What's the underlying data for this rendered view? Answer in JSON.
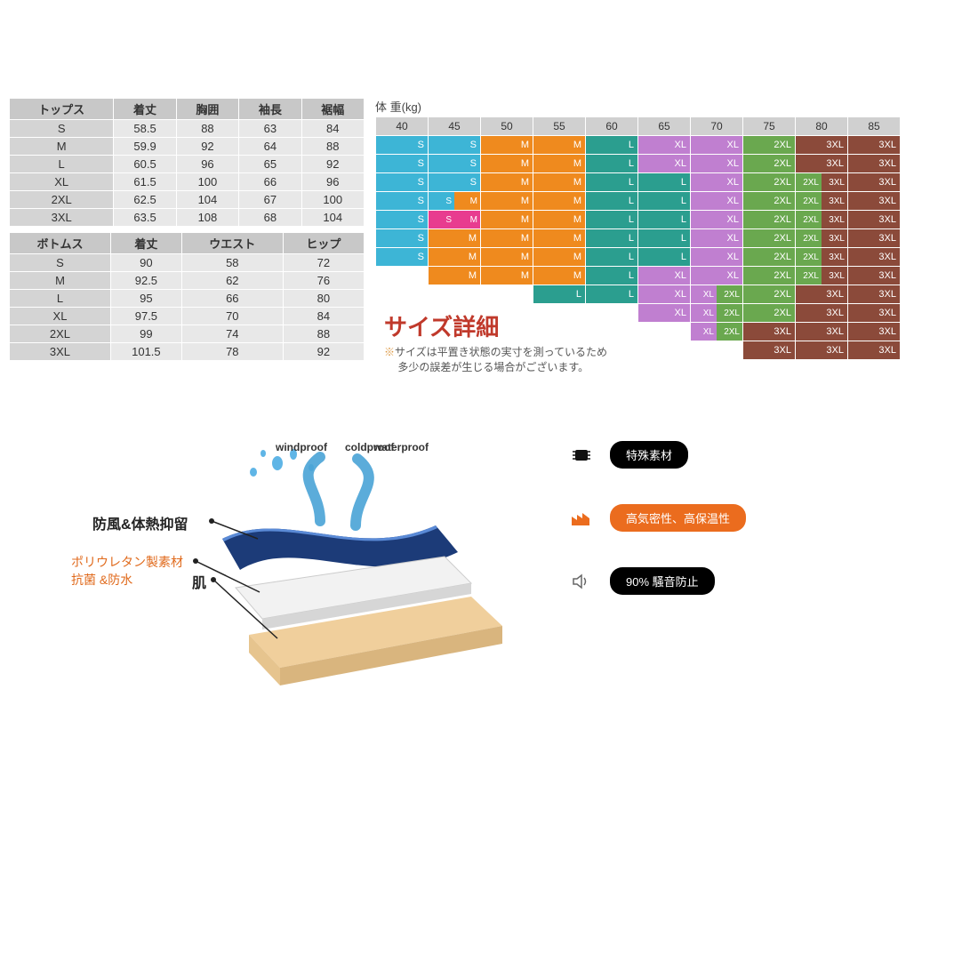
{
  "topsTable": {
    "headers": [
      "トップス",
      "着丈",
      "胸囲",
      "袖長",
      "裾幅"
    ],
    "rows": [
      [
        "S",
        "58.5",
        "88",
        "63",
        "84"
      ],
      [
        "M",
        "59.9",
        "92",
        "64",
        "88"
      ],
      [
        "L",
        "60.5",
        "96",
        "65",
        "92"
      ],
      [
        "XL",
        "61.5",
        "100",
        "66",
        "96"
      ],
      [
        "2XL",
        "62.5",
        "104",
        "67",
        "100"
      ],
      [
        "3XL",
        "63.5",
        "108",
        "68",
        "104"
      ]
    ]
  },
  "bottomsTable": {
    "headers": [
      "ボトムス",
      "着丈",
      "ウエスト",
      "ヒップ"
    ],
    "rows": [
      [
        "S",
        "90",
        "58",
        "72"
      ],
      [
        "M",
        "92.5",
        "62",
        "76"
      ],
      [
        "L",
        "95",
        "66",
        "80"
      ],
      [
        "XL",
        "97.5",
        "70",
        "84"
      ],
      [
        "2XL",
        "99",
        "74",
        "88"
      ],
      [
        "3XL",
        "101.5",
        "78",
        "92"
      ]
    ]
  },
  "weightLabel": "体 重(kg)",
  "weightCols": [
    "40",
    "45",
    "50",
    "55",
    "60",
    "65",
    "70",
    "75",
    "80",
    "85"
  ],
  "sizeColors": {
    "S": "#3db5d6",
    "M": "#ef8a1e",
    "L": "#2b9e8f",
    "XL": "#c07fd0",
    "2XL": "#6aa84f",
    "3XL": "#8b4a3a",
    "pink": "#e83c8f"
  },
  "sizeGrid": [
    [
      {
        "t": "S",
        "c": "s"
      },
      {
        "t": "S",
        "c": "s"
      },
      {
        "t": "M",
        "c": "m"
      },
      {
        "t": "M",
        "c": "m"
      },
      {
        "t": "L",
        "c": "l"
      },
      {
        "t": "XL",
        "c": "xl"
      },
      {
        "t": "XL",
        "c": "xl"
      },
      {
        "t": "2XL",
        "c": "2xl"
      },
      {
        "t": "3XL",
        "c": "3xl"
      },
      {
        "t": "3XL",
        "c": "3xl"
      }
    ],
    [
      {
        "t": "S",
        "c": "s"
      },
      {
        "t": "S",
        "c": "s"
      },
      {
        "t": "M",
        "c": "m"
      },
      {
        "t": "M",
        "c": "m"
      },
      {
        "t": "L",
        "c": "l"
      },
      {
        "t": "XL",
        "c": "xl"
      },
      {
        "t": "XL",
        "c": "xl"
      },
      {
        "t": "2XL",
        "c": "2xl"
      },
      {
        "t": "3XL",
        "c": "3xl"
      },
      {
        "t": "3XL",
        "c": "3xl"
      }
    ],
    [
      {
        "t": "S",
        "c": "s"
      },
      {
        "t": "S",
        "c": "s"
      },
      {
        "t": "M",
        "c": "m"
      },
      {
        "t": "M",
        "c": "m"
      },
      {
        "t": "L",
        "c": "l"
      },
      {
        "t": "L",
        "c": "l"
      },
      {
        "t": "XL",
        "c": "xl"
      },
      {
        "t": "2XL",
        "c": "2xl"
      },
      {
        "split": [
          {
            "t": "2XL",
            "c": "2xl"
          },
          {
            "t": "3XL",
            "c": "3xl"
          }
        ]
      },
      {
        "t": "3XL",
        "c": "3xl"
      }
    ],
    [
      {
        "t": "S",
        "c": "s"
      },
      {
        "split": [
          {
            "t": "S",
            "c": "s"
          },
          {
            "t": "M",
            "c": "m"
          }
        ]
      },
      {
        "t": "M",
        "c": "m"
      },
      {
        "t": "M",
        "c": "m"
      },
      {
        "t": "L",
        "c": "l"
      },
      {
        "t": "L",
        "c": "l"
      },
      {
        "t": "XL",
        "c": "xl"
      },
      {
        "t": "2XL",
        "c": "2xl"
      },
      {
        "split": [
          {
            "t": "2XL",
            "c": "2xl"
          },
          {
            "t": "3XL",
            "c": "3xl"
          }
        ]
      },
      {
        "t": "3XL",
        "c": "3xl"
      }
    ],
    [
      {
        "t": "S",
        "c": "s"
      },
      {
        "split": [
          {
            "t": "S",
            "c": "pink"
          },
          {
            "t": "M",
            "c": "pink"
          }
        ]
      },
      {
        "t": "M",
        "c": "m"
      },
      {
        "t": "M",
        "c": "m"
      },
      {
        "t": "L",
        "c": "l"
      },
      {
        "t": "L",
        "c": "l"
      },
      {
        "t": "XL",
        "c": "xl"
      },
      {
        "t": "2XL",
        "c": "2xl"
      },
      {
        "split": [
          {
            "t": "2XL",
            "c": "2xl"
          },
          {
            "t": "3XL",
            "c": "3xl"
          }
        ]
      },
      {
        "t": "3XL",
        "c": "3xl"
      }
    ],
    [
      {
        "t": "S",
        "c": "s"
      },
      {
        "t": "M",
        "c": "m"
      },
      {
        "t": "M",
        "c": "m"
      },
      {
        "t": "M",
        "c": "m"
      },
      {
        "t": "L",
        "c": "l"
      },
      {
        "t": "L",
        "c": "l"
      },
      {
        "t": "XL",
        "c": "xl"
      },
      {
        "t": "2XL",
        "c": "2xl"
      },
      {
        "split": [
          {
            "t": "2XL",
            "c": "2xl"
          },
          {
            "t": "3XL",
            "c": "3xl"
          }
        ]
      },
      {
        "t": "3XL",
        "c": "3xl"
      }
    ],
    [
      {
        "t": "S",
        "c": "s"
      },
      {
        "t": "M",
        "c": "m"
      },
      {
        "t": "M",
        "c": "m"
      },
      {
        "t": "M",
        "c": "m"
      },
      {
        "t": "L",
        "c": "l"
      },
      {
        "t": "L",
        "c": "l"
      },
      {
        "t": "XL",
        "c": "xl"
      },
      {
        "t": "2XL",
        "c": "2xl"
      },
      {
        "split": [
          {
            "t": "2XL",
            "c": "2xl"
          },
          {
            "t": "3XL",
            "c": "3xl"
          }
        ]
      },
      {
        "t": "3XL",
        "c": "3xl"
      }
    ],
    [
      {
        "t": "",
        "c": "none"
      },
      {
        "t": "M",
        "c": "m"
      },
      {
        "t": "M",
        "c": "m"
      },
      {
        "t": "M",
        "c": "m"
      },
      {
        "t": "L",
        "c": "l"
      },
      {
        "t": "XL",
        "c": "xl"
      },
      {
        "t": "XL",
        "c": "xl"
      },
      {
        "t": "2XL",
        "c": "2xl"
      },
      {
        "split": [
          {
            "t": "2XL",
            "c": "2xl"
          },
          {
            "t": "3XL",
            "c": "3xl"
          }
        ]
      },
      {
        "t": "3XL",
        "c": "3xl"
      }
    ],
    [
      {
        "t": "",
        "c": "none"
      },
      {
        "t": "",
        "c": "none"
      },
      {
        "t": "",
        "c": "none"
      },
      {
        "t": "L",
        "c": "l"
      },
      {
        "t": "L",
        "c": "l"
      },
      {
        "t": "XL",
        "c": "xl"
      },
      {
        "split": [
          {
            "t": "XL",
            "c": "xl"
          },
          {
            "t": "2XL",
            "c": "2xl"
          }
        ]
      },
      {
        "t": "2XL",
        "c": "2xl"
      },
      {
        "t": "3XL",
        "c": "3xl"
      },
      {
        "t": "3XL",
        "c": "3xl"
      }
    ],
    [
      {
        "t": "",
        "c": "none"
      },
      {
        "t": "",
        "c": "none"
      },
      {
        "t": "",
        "c": "none"
      },
      {
        "t": "",
        "c": "none"
      },
      {
        "t": "",
        "c": "none"
      },
      {
        "t": "XL",
        "c": "xl"
      },
      {
        "split": [
          {
            "t": "XL",
            "c": "xl"
          },
          {
            "t": "2XL",
            "c": "2xl"
          }
        ]
      },
      {
        "t": "2XL",
        "c": "2xl"
      },
      {
        "t": "3XL",
        "c": "3xl"
      },
      {
        "t": "3XL",
        "c": "3xl"
      }
    ],
    [
      {
        "t": "",
        "c": "none"
      },
      {
        "t": "",
        "c": "none"
      },
      {
        "t": "",
        "c": "none"
      },
      {
        "t": "",
        "c": "none"
      },
      {
        "t": "",
        "c": "none"
      },
      {
        "t": "",
        "c": "none"
      },
      {
        "split": [
          {
            "t": "XL",
            "c": "xl"
          },
          {
            "t": "2XL",
            "c": "2xl"
          }
        ]
      },
      {
        "t": "3XL",
        "c": "3xl"
      },
      {
        "t": "3XL",
        "c": "3xl"
      },
      {
        "t": "3XL",
        "c": "3xl"
      }
    ],
    [
      {
        "t": "",
        "c": "none"
      },
      {
        "t": "",
        "c": "none"
      },
      {
        "t": "",
        "c": "none"
      },
      {
        "t": "",
        "c": "none"
      },
      {
        "t": "",
        "c": "none"
      },
      {
        "t": "",
        "c": "none"
      },
      {
        "t": "",
        "c": "none"
      },
      {
        "t": "3XL",
        "c": "3xl"
      },
      {
        "t": "3XL",
        "c": "3xl"
      },
      {
        "t": "3XL",
        "c": "3xl"
      }
    ]
  ],
  "sizeDetail": {
    "title": "サイズ詳細",
    "note": "※ サイズは平置き状態の実寸を測っているため\n　 多少の誤差が生じる場合がございます。"
  },
  "diagram": {
    "top_windproof": "windproof",
    "top_coldproof": "coldproof",
    "top_waterproof": "waterproof",
    "line1": "防風&体熱抑留",
    "line2a": "ポリウレタン製素材",
    "line2b": "抗菌 &防水",
    "skin": "肌",
    "layerColors": {
      "outer": "#1c3b78",
      "outerHi": "#3a6bc7",
      "mid": "#e8e8e8",
      "skin": "#f0cf9c"
    }
  },
  "features": {
    "f1": "特殊素材",
    "f2": "高気密性、高保温性",
    "f3": "90% 騒音防止"
  }
}
